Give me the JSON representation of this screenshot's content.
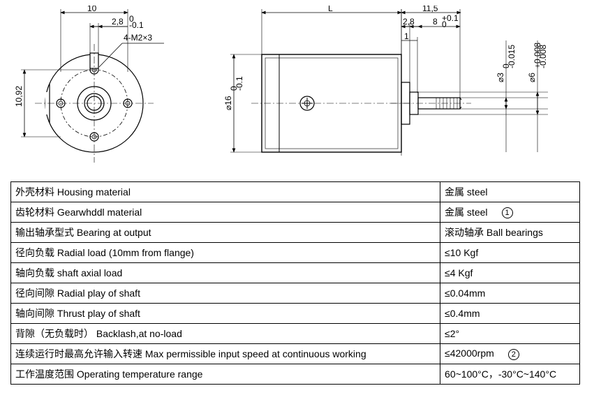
{
  "drawing": {
    "stroke": "#000000",
    "stroke_width": 1.2,
    "hatch_fill": "#ffffff",
    "dims": {
      "d10": "10",
      "d2_8": "2,8",
      "d2_8_tol": "0\n-0.1",
      "holes": "4-M2×3",
      "d10_92": "10,92",
      "d16": "⌀16",
      "d16_tol": "0\n-0.1",
      "L": "L",
      "d2_8b": "2,8",
      "d1": "1",
      "d11_5": "11,5",
      "d8": "8",
      "d8_tol": "+0.1\n0",
      "d3": "⌀3",
      "d3_tol": "0\n-0.015",
      "d6": "⌀6",
      "d6_tol": "+0.008\n-0.008"
    }
  },
  "table": {
    "rows": [
      {
        "label_cn": "外壳材料",
        "label_en": "Housing material",
        "value_cn": "金属",
        "value_en": "steel",
        "note": ""
      },
      {
        "label_cn": "齿轮材料",
        "label_en": "Gearwhddl material",
        "value_cn": "金属",
        "value_en": "steel",
        "note": "①"
      },
      {
        "label_cn": "输出轴承型式",
        "label_en": "Bearing at output",
        "value_cn": "滚动轴承",
        "value_en": "Ball bearings",
        "note": ""
      },
      {
        "label_cn": "径向负载",
        "label_en": "Radial load (10mm from flange)",
        "value_cn": "",
        "value_en": "≤10   Kgf",
        "note": ""
      },
      {
        "label_cn": "轴向负载",
        "label_en": "shaft axial load",
        "value_cn": "",
        "value_en": "≤4    Kgf",
        "note": ""
      },
      {
        "label_cn": "径向间隙",
        "label_en": "Radial play of shaft",
        "value_cn": "",
        "value_en": "≤0.04mm",
        "note": ""
      },
      {
        "label_cn": "轴向间隙",
        "label_en": "Thrust play of shaft",
        "value_cn": "",
        "value_en": "≤0.4mm",
        "note": ""
      },
      {
        "label_cn": "背隙（无负载时）",
        "label_en": "Backlash,at no-load",
        "value_cn": "",
        "value_en": "≤2°",
        "note": ""
      },
      {
        "label_cn": "连续运行时最高允许输入转速",
        "label_en": "Max permissible input speed at continuous working",
        "value_cn": "",
        "value_en": "≤42000rpm",
        "note": "②"
      },
      {
        "label_cn": "工作温度范围",
        "label_en": "Operating temperature range",
        "value_cn": "",
        "value_en": "60~100°C，-30°C~140°C",
        "note": ""
      }
    ]
  }
}
